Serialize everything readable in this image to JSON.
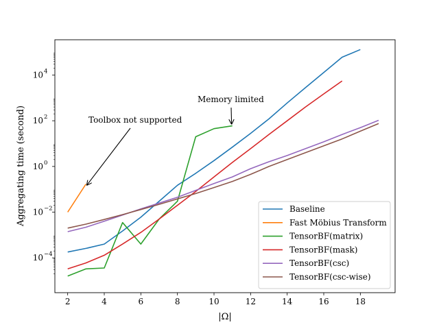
{
  "chart_data": {
    "type": "line",
    "xlabel": "|Ω|",
    "ylabel": "Aggregating time (second)",
    "yscale": "log",
    "xlim": [
      1.3,
      19.9
    ],
    "ylim": [
      3e-06,
      350000
    ],
    "xticks": [
      2,
      4,
      6,
      8,
      10,
      12,
      14,
      16,
      18
    ],
    "xtick_labels": [
      "2",
      "4",
      "6",
      "8",
      "10",
      "12",
      "14",
      "16",
      "18"
    ],
    "yticks": [
      0.0001,
      0.01,
      1,
      100,
      10000
    ],
    "ytick_labels": [
      "10",
      "10",
      "10",
      "10",
      "10"
    ],
    "ytick_exponents": [
      "−4",
      "−2",
      "0",
      "2",
      "4"
    ],
    "grid": false,
    "legend_position": "lower-right",
    "series": [
      {
        "name": "Baseline",
        "color": "#1f77b4",
        "x": [
          2,
          3,
          4,
          5,
          6,
          7,
          8,
          9,
          10,
          11,
          12,
          13,
          14,
          15,
          16,
          17,
          18
        ],
        "y": [
          0.00018,
          0.00026,
          0.0004,
          0.0015,
          0.006,
          0.03,
          0.15,
          0.5,
          1.8,
          7,
          28,
          120,
          600,
          2800,
          13000,
          60000,
          130000
        ]
      },
      {
        "name": "Fast Möbius Transform",
        "color": "#ff7f0e",
        "x": [
          2,
          3
        ],
        "y": [
          0.01,
          0.17
        ]
      },
      {
        "name": "TensorBF(matrix)",
        "color": "#2ca02c",
        "x": [
          2,
          3,
          4,
          5,
          6,
          7,
          8,
          9,
          10,
          11
        ],
        "y": [
          1.6e-05,
          3.3e-05,
          3.6e-05,
          0.0035,
          0.0004,
          0.005,
          0.03,
          20,
          45,
          60
        ]
      },
      {
        "name": "TensorBF(mask)",
        "color": "#d62728",
        "x": [
          2,
          3,
          4,
          5,
          6,
          7,
          8,
          9,
          10,
          11,
          12,
          13,
          14,
          15,
          16,
          17
        ],
        "y": [
          3.3e-05,
          6e-05,
          0.00013,
          0.0004,
          0.0013,
          0.005,
          0.02,
          0.08,
          0.35,
          1.5,
          6,
          25,
          100,
          400,
          1500,
          5500
        ]
      },
      {
        "name": "TensorBF(csc)",
        "color": "#9467bd",
        "x": [
          2,
          3,
          4,
          5,
          6,
          7,
          8,
          9,
          10,
          11,
          12,
          13,
          14,
          15,
          16,
          17,
          18,
          19
        ],
        "y": [
          0.0014,
          0.0022,
          0.004,
          0.0075,
          0.014,
          0.025,
          0.045,
          0.09,
          0.18,
          0.35,
          0.8,
          1.6,
          3,
          6,
          12,
          25,
          50,
          105
        ]
      },
      {
        "name": "TensorBF(csc-wise)",
        "color": "#8c564b",
        "x": [
          2,
          3,
          4,
          5,
          6,
          7,
          8,
          9,
          10,
          11,
          12,
          13,
          14,
          15,
          16,
          17,
          18,
          19
        ],
        "y": [
          0.002,
          0.003,
          0.0048,
          0.0078,
          0.013,
          0.022,
          0.038,
          0.065,
          0.12,
          0.22,
          0.45,
          1,
          2,
          4,
          8,
          16,
          35,
          75
        ]
      }
    ],
    "annotations": [
      {
        "text": "Toolbox not supported",
        "target_x": 3,
        "target_y": 0.17
      },
      {
        "text": "Memory limited",
        "target_x": 11,
        "target_y": 60
      }
    ]
  }
}
